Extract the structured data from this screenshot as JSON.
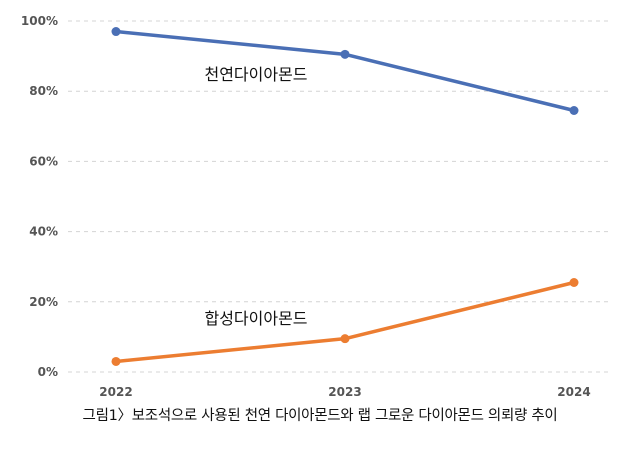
{
  "chart_data": {
    "type": "line",
    "x": [
      "2022",
      "2023",
      "2024"
    ],
    "ylim": [
      0,
      100
    ],
    "yticks": [
      0,
      20,
      40,
      60,
      80,
      100
    ],
    "ytick_labels": [
      "0%",
      "20%",
      "40%",
      "60%",
      "80%",
      "100%"
    ],
    "grid": "horizontal dashed",
    "series": [
      {
        "name": "천연다이아몬드",
        "values": [
          97,
          90.5,
          74.5
        ],
        "color": "#4a6fb5"
      },
      {
        "name": "합성다이아몬드",
        "values": [
          3,
          9.5,
          25.5
        ],
        "color": "#ec7d31"
      }
    ],
    "caption": "그림1〉보조석으로 사용된 천연 다이아몬드와 랩 그로운 다이아몬드 의뢰량 추이"
  }
}
